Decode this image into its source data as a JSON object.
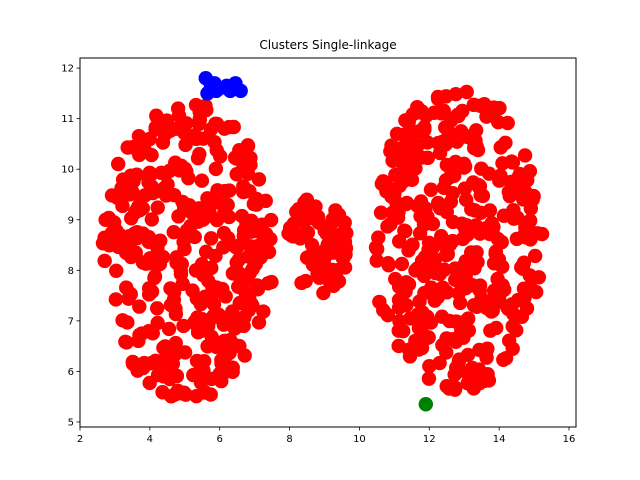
{
  "chart_data": {
    "type": "scatter",
    "title": "Clusters Single-linkage",
    "xlabel": "",
    "ylabel": "",
    "xlim": [
      2.0,
      16.2
    ],
    "ylim": [
      4.9,
      12.2
    ],
    "x_ticks": [
      2,
      4,
      6,
      8,
      10,
      12,
      14,
      16
    ],
    "y_ticks": [
      5,
      6,
      7,
      8,
      9,
      10,
      11,
      12
    ],
    "grid": false,
    "legend": "none",
    "series": [
      {
        "color": "#ff0000",
        "description": "main cluster: two large elliptical blobs connected through the middle",
        "blobs": [
          {
            "cx": 5.1,
            "cy": 8.4,
            "rx": 2.45,
            "ry": 3.0,
            "count": 380
          },
          {
            "cx": 12.8,
            "cy": 8.6,
            "rx": 2.45,
            "ry": 3.0,
            "count": 380
          },
          {
            "cx": 8.8,
            "cy": 8.5,
            "rx": 0.9,
            "ry": 1.0,
            "count": 80
          }
        ]
      },
      {
        "color": "#0000ff",
        "points": [
          [
            5.6,
            11.8
          ],
          [
            5.75,
            11.65
          ],
          [
            5.85,
            11.7
          ],
          [
            6.0,
            11.6
          ],
          [
            6.2,
            11.65
          ],
          [
            6.3,
            11.55
          ],
          [
            6.45,
            11.7
          ],
          [
            6.6,
            11.55
          ],
          [
            5.65,
            11.5
          ],
          [
            5.9,
            11.55
          ]
        ]
      },
      {
        "color": "#008000",
        "points": [
          [
            11.9,
            5.35
          ]
        ]
      }
    ]
  }
}
